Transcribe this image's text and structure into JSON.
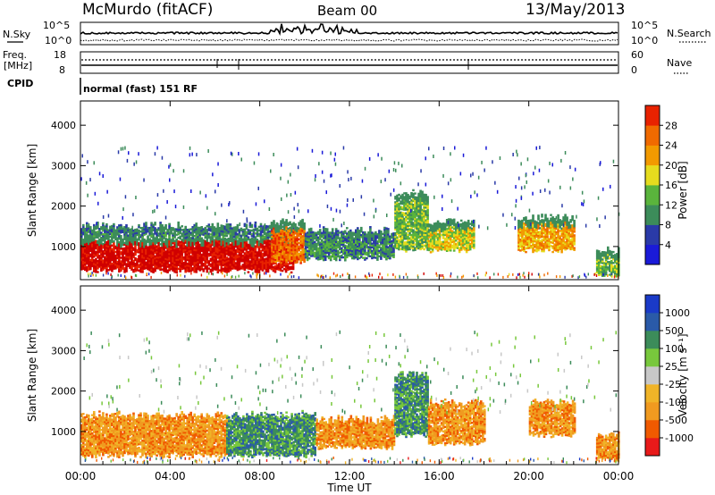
{
  "header": {
    "station": "McMurdo (fitACF)",
    "beam": "Beam 00",
    "date": "13/May/2013"
  },
  "top_panels": {
    "nsky_label": "N.Sky",
    "nsky_ticks": [
      "10^5",
      "10^0"
    ],
    "nsearch_label": "N.Search",
    "nsearch_ticks": [
      "10^5",
      "10^0"
    ],
    "freq_label_1": "Freq.",
    "freq_label_2": "[MHz]",
    "freq_ticks": [
      "18",
      "8"
    ],
    "nave_label": "Nave",
    "nave_ticks": [
      "60",
      "0"
    ],
    "cpid_label": "CPID",
    "cpid_text": "normal (fast) 151 RF"
  },
  "colors": {
    "power": [
      "#1a1ad8",
      "#2a3aa8",
      "#3c8c5a",
      "#5ab43c",
      "#e6dc1e",
      "#f29a00",
      "#f06a00",
      "#e82200",
      "#d00000"
    ],
    "velocity": [
      "#e81a1a",
      "#f05a00",
      "#f09a20",
      "#f0b428",
      "#c8c8c8",
      "#78c83c",
      "#3c8c5a",
      "#2a5aa8",
      "#1a3ac8"
    ]
  },
  "chart_data": [
    {
      "type": "heatmap",
      "panel": "power",
      "ylabel": "Slant Range [km]",
      "yticks": [
        1000,
        2000,
        3000,
        4000
      ],
      "ylim": [
        180,
        4600
      ],
      "xlim": [
        0,
        24
      ],
      "colorbar_label": "Power [dB]",
      "colorbar_ticks": [
        "4",
        "8",
        "12",
        "16",
        "20",
        "24",
        "28"
      ],
      "bands": [
        {
          "t0": 0.0,
          "t1": 9.5,
          "r0": 400,
          "r1": 1250,
          "level": 8
        },
        {
          "t0": 0.0,
          "t1": 9.5,
          "r0": 1250,
          "r1": 1500,
          "level": 2
        },
        {
          "t0": 8.5,
          "t1": 10.0,
          "r0": 600,
          "r1": 1600,
          "level": 6
        },
        {
          "t0": 10.0,
          "t1": 14.0,
          "r0": 700,
          "r1": 1400,
          "level": 2
        },
        {
          "t0": 14.0,
          "t1": 15.5,
          "r0": 900,
          "r1": 2300,
          "level": 3
        },
        {
          "t0": 15.5,
          "t1": 17.5,
          "r0": 900,
          "r1": 1600,
          "level": 4
        },
        {
          "t0": 19.5,
          "t1": 22.0,
          "r0": 900,
          "r1": 1700,
          "level": 5
        },
        {
          "t0": 23.0,
          "t1": 24.0,
          "r0": 300,
          "r1": 900,
          "level": 3
        }
      ]
    },
    {
      "type": "heatmap",
      "panel": "velocity",
      "ylabel": "Slant Range [km]",
      "yticks": [
        1000,
        2000,
        3000,
        4000
      ],
      "ylim": [
        180,
        4600
      ],
      "xlim": [
        0,
        24
      ],
      "xlabel": "Time UT",
      "xticks": [
        "00:00",
        "04:00",
        "08:00",
        "12:00",
        "16:00",
        "20:00",
        "00:00"
      ],
      "colorbar_label": "Velocity [m s⁻¹]",
      "colorbar_ticks": [
        "-1000",
        "-500",
        "-100",
        "-25",
        "25",
        "100",
        "500",
        "1000"
      ],
      "bands": [
        {
          "t0": 0.0,
          "t1": 6.5,
          "r0": 400,
          "r1": 1400,
          "level": 2
        },
        {
          "t0": 6.5,
          "t1": 10.5,
          "r0": 400,
          "r1": 1400,
          "level": 6
        },
        {
          "t0": 10.5,
          "t1": 14.0,
          "r0": 600,
          "r1": 1300,
          "level": 2
        },
        {
          "t0": 14.0,
          "t1": 15.5,
          "r0": 900,
          "r1": 2400,
          "level": 6
        },
        {
          "t0": 15.5,
          "t1": 18.0,
          "r0": 700,
          "r1": 1700,
          "level": 2
        },
        {
          "t0": 20.0,
          "t1": 22.0,
          "r0": 900,
          "r1": 1700,
          "level": 2
        },
        {
          "t0": 23.0,
          "t1": 24.0,
          "r0": 300,
          "r1": 900,
          "level": 2
        }
      ]
    }
  ]
}
